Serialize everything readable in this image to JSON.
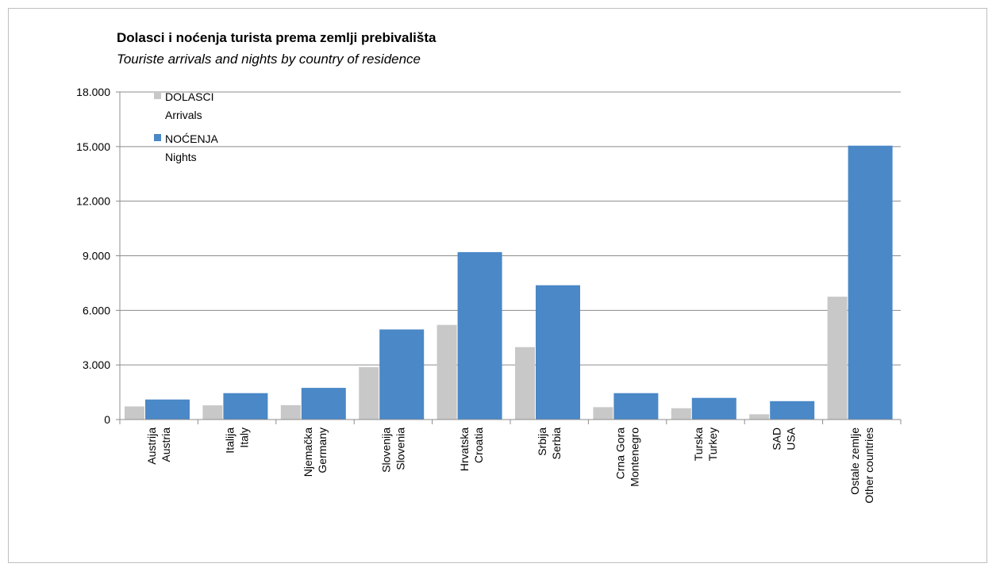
{
  "chart_data": {
    "type": "bar",
    "title": "Dolasci i noćenja turista prema zemlji prebivališta",
    "subtitle": "Touriste arrivals and nights by country of residence",
    "categories": [
      [
        "Austrija",
        "Austria"
      ],
      [
        "Italija",
        "Italy"
      ],
      [
        "Njemačka",
        "Germany"
      ],
      [
        "Slovenija",
        "Slovenia"
      ],
      [
        "Hrvatska",
        "Croatia"
      ],
      [
        "Srbija",
        "Serbia"
      ],
      [
        "Crna Gora",
        "Montenegro"
      ],
      [
        "Turska",
        "Turkey"
      ],
      [
        "SAD",
        "USA"
      ],
      [
        "Ostale zemlje",
        "Other countries"
      ]
    ],
    "series": [
      {
        "name": [
          "DOLASCI",
          "Arrivals"
        ],
        "color": "#c8c8c8",
        "values": [
          720,
          780,
          790,
          2880,
          5200,
          3980,
          680,
          620,
          290,
          6750
        ]
      },
      {
        "name": [
          "NOĆENJA",
          "Nights"
        ],
        "color": "#4a88c7",
        "values": [
          1100,
          1450,
          1740,
          4950,
          9200,
          7380,
          1450,
          1190,
          1010,
          15050
        ]
      }
    ],
    "yticks": [
      "0",
      "3.000",
      "6.000",
      "9.000",
      "12.000",
      "15.000",
      "18.000"
    ],
    "ylim": [
      0,
      18000
    ],
    "grid": true,
    "legend_position": "top-left"
  }
}
